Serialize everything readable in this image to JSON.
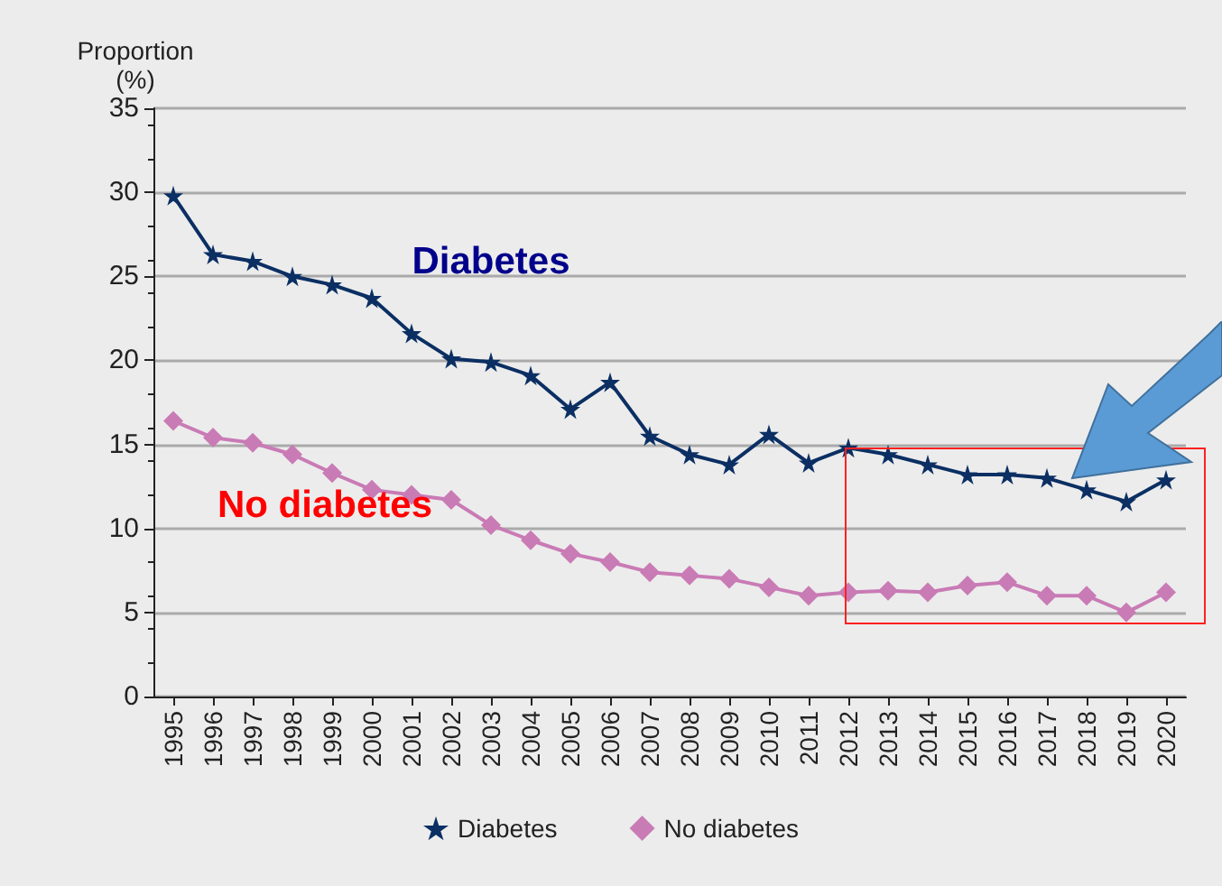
{
  "chart_data": {
    "type": "line",
    "ylabel": "Proportion (%)",
    "categories": [
      "1995",
      "1996",
      "1997",
      "1998",
      "1999",
      "2000",
      "2001",
      "2002",
      "2003",
      "2004",
      "2005",
      "2006",
      "2007",
      "2008",
      "2009",
      "2010",
      "2011",
      "2012",
      "2013",
      "2014",
      "2015",
      "2016",
      "2017",
      "2018",
      "2019",
      "2020"
    ],
    "series": [
      {
        "name": "Diabetes",
        "color": "#0b2f63",
        "marker": "star",
        "values": [
          29.8,
          26.3,
          25.9,
          25.0,
          24.5,
          23.7,
          21.6,
          20.1,
          19.9,
          19.1,
          17.1,
          18.7,
          15.5,
          14.4,
          13.8,
          15.6,
          13.9,
          14.8,
          14.4,
          13.8,
          13.2,
          13.2,
          13.0,
          12.3,
          11.6,
          12.9
        ]
      },
      {
        "name": "No diabetes",
        "color": "#c97bb5",
        "marker": "diamond",
        "values": [
          16.4,
          15.4,
          15.1,
          14.4,
          13.3,
          12.3,
          12.0,
          11.7,
          10.2,
          9.3,
          8.5,
          8.0,
          7.4,
          7.2,
          7.0,
          6.5,
          6.0,
          6.2,
          6.3,
          6.2,
          6.6,
          6.8,
          6.0,
          6.0,
          5.0,
          6.2
        ]
      }
    ],
    "annotations": [
      "Diabetes",
      "No diabetes"
    ],
    "ylim": [
      0,
      35
    ],
    "yticks": [
      0,
      5,
      10,
      15,
      20,
      25,
      30,
      35
    ],
    "grid": "y",
    "legend": "bottom",
    "line_style": "solid"
  }
}
